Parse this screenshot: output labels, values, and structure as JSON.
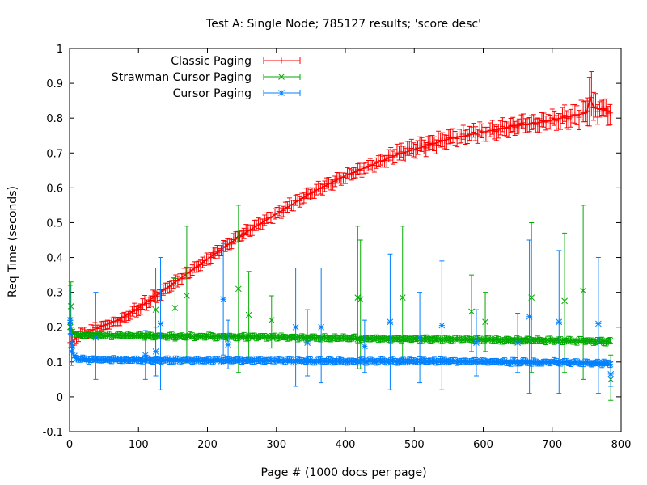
{
  "chart_data": {
    "type": "line",
    "title": "Test A: Single Node; 785127 results; 'score desc'",
    "xlabel": "Page # (1000 docs per page)",
    "ylabel": "Req Time (seconds)",
    "xlim": [
      0,
      800
    ],
    "ylim": [
      -0.1,
      1
    ],
    "x_ticks": [
      "0",
      "100",
      "200",
      "300",
      "400",
      "500",
      "600",
      "700",
      "800"
    ],
    "y_ticks": [
      "-0.1",
      "0",
      "0.1",
      "0.2",
      "0.3",
      "0.4",
      "0.5",
      "0.6",
      "0.7",
      "0.8",
      "0.9",
      "1"
    ],
    "x_tick_values": [
      0,
      100,
      200,
      300,
      400,
      500,
      600,
      700,
      800
    ],
    "y_tick_values": [
      -0.1,
      0,
      0.1,
      0.2,
      0.3,
      0.4,
      0.5,
      0.6,
      0.7,
      0.8,
      0.9,
      1
    ],
    "grid": false,
    "legend_position": "top-left",
    "series": [
      {
        "name": "Classic Paging",
        "color": "#ff0000",
        "marker": "plus",
        "x": [
          1,
          10,
          25,
          50,
          75,
          100,
          125,
          150,
          175,
          200,
          225,
          250,
          275,
          300,
          325,
          350,
          375,
          400,
          425,
          450,
          475,
          500,
          525,
          550,
          575,
          600,
          625,
          650,
          675,
          700,
          725,
          750,
          755,
          760,
          770,
          785
        ],
        "y": [
          0.15,
          0.17,
          0.185,
          0.205,
          0.225,
          0.255,
          0.29,
          0.325,
          0.36,
          0.395,
          0.43,
          0.465,
          0.495,
          0.525,
          0.555,
          0.585,
          0.61,
          0.635,
          0.655,
          0.675,
          0.695,
          0.71,
          0.725,
          0.74,
          0.75,
          0.76,
          0.77,
          0.78,
          0.785,
          0.795,
          0.805,
          0.815,
          0.86,
          0.83,
          0.825,
          0.82
        ],
        "y_err": [
          0.02,
          0.015,
          0.012,
          0.012,
          0.012,
          0.015,
          0.015,
          0.015,
          0.015,
          0.015,
          0.015,
          0.015,
          0.015,
          0.015,
          0.015,
          0.015,
          0.015,
          0.015,
          0.015,
          0.015,
          0.02,
          0.02,
          0.02,
          0.02,
          0.02,
          0.02,
          0.02,
          0.02,
          0.02,
          0.02,
          0.025,
          0.03,
          0.08,
          0.04,
          0.02,
          0.03
        ]
      },
      {
        "name": "Strawman Cursor Paging",
        "color": "#00aa00",
        "marker": "cross",
        "x": [
          1,
          5,
          10,
          25,
          50,
          100,
          150,
          200,
          250,
          300,
          350,
          400,
          450,
          500,
          550,
          600,
          650,
          700,
          750,
          785
        ],
        "y": [
          0.2,
          0.185,
          0.178,
          0.177,
          0.176,
          0.175,
          0.174,
          0.173,
          0.172,
          0.171,
          0.17,
          0.168,
          0.167,
          0.166,
          0.165,
          0.164,
          0.163,
          0.162,
          0.16,
          0.158
        ],
        "outliers": [
          {
            "x": 2,
            "y": 0.26,
            "lo": 0.19,
            "hi": 0.33
          },
          {
            "x": 125,
            "y": 0.25,
            "lo": 0.13,
            "hi": 0.37
          },
          {
            "x": 153,
            "y": 0.255,
            "lo": 0.16,
            "hi": 0.34
          },
          {
            "x": 170,
            "y": 0.29,
            "lo": 0.1,
            "hi": 0.49
          },
          {
            "x": 245,
            "y": 0.31,
            "lo": 0.07,
            "hi": 0.55
          },
          {
            "x": 260,
            "y": 0.235,
            "lo": 0.1,
            "hi": 0.36
          },
          {
            "x": 293,
            "y": 0.22,
            "lo": 0.14,
            "hi": 0.29
          },
          {
            "x": 418,
            "y": 0.285,
            "lo": 0.08,
            "hi": 0.49
          },
          {
            "x": 422,
            "y": 0.28,
            "lo": 0.08,
            "hi": 0.45
          },
          {
            "x": 483,
            "y": 0.285,
            "lo": 0.1,
            "hi": 0.49
          },
          {
            "x": 583,
            "y": 0.245,
            "lo": 0.13,
            "hi": 0.35
          },
          {
            "x": 603,
            "y": 0.215,
            "lo": 0.13,
            "hi": 0.3
          },
          {
            "x": 670,
            "y": 0.285,
            "lo": 0.07,
            "hi": 0.5
          },
          {
            "x": 718,
            "y": 0.275,
            "lo": 0.07,
            "hi": 0.47
          },
          {
            "x": 745,
            "y": 0.305,
            "lo": 0.05,
            "hi": 0.55
          },
          {
            "x": 785,
            "y": 0.05,
            "lo": -0.01,
            "hi": 0.12
          }
        ]
      },
      {
        "name": "Cursor Paging",
        "color": "#0080ff",
        "marker": "star",
        "x": [
          1,
          5,
          10,
          25,
          50,
          100,
          150,
          200,
          250,
          300,
          350,
          400,
          450,
          500,
          550,
          600,
          650,
          700,
          750,
          785
        ],
        "y": [
          0.22,
          0.12,
          0.108,
          0.107,
          0.106,
          0.106,
          0.105,
          0.105,
          0.104,
          0.104,
          0.103,
          0.103,
          0.103,
          0.102,
          0.102,
          0.101,
          0.1,
          0.1,
          0.098,
          0.095
        ],
        "outliers": [
          {
            "x": 1,
            "y": 0.22,
            "lo": 0.18,
            "hi": 0.32
          },
          {
            "x": 3,
            "y": 0.13,
            "lo": 0.09,
            "hi": 0.18
          },
          {
            "x": 38,
            "y": 0.17,
            "lo": 0.05,
            "hi": 0.3
          },
          {
            "x": 110,
            "y": 0.12,
            "lo": 0.05,
            "hi": 0.19
          },
          {
            "x": 125,
            "y": 0.13,
            "lo": 0.06,
            "hi": 0.2
          },
          {
            "x": 132,
            "y": 0.21,
            "lo": 0.02,
            "hi": 0.4
          },
          {
            "x": 223,
            "y": 0.28,
            "lo": 0.12,
            "hi": 0.44
          },
          {
            "x": 230,
            "y": 0.15,
            "lo": 0.08,
            "hi": 0.22
          },
          {
            "x": 328,
            "y": 0.2,
            "lo": 0.03,
            "hi": 0.37
          },
          {
            "x": 345,
            "y": 0.155,
            "lo": 0.06,
            "hi": 0.25
          },
          {
            "x": 365,
            "y": 0.2,
            "lo": 0.04,
            "hi": 0.37
          },
          {
            "x": 428,
            "y": 0.145,
            "lo": 0.07,
            "hi": 0.22
          },
          {
            "x": 465,
            "y": 0.215,
            "lo": 0.02,
            "hi": 0.41
          },
          {
            "x": 508,
            "y": 0.17,
            "lo": 0.04,
            "hi": 0.3
          },
          {
            "x": 540,
            "y": 0.205,
            "lo": 0.02,
            "hi": 0.39
          },
          {
            "x": 590,
            "y": 0.155,
            "lo": 0.06,
            "hi": 0.25
          },
          {
            "x": 650,
            "y": 0.155,
            "lo": 0.07,
            "hi": 0.24
          },
          {
            "x": 667,
            "y": 0.23,
            "lo": 0.01,
            "hi": 0.45
          },
          {
            "x": 710,
            "y": 0.215,
            "lo": 0.01,
            "hi": 0.42
          },
          {
            "x": 767,
            "y": 0.21,
            "lo": 0.01,
            "hi": 0.4
          },
          {
            "x": 785,
            "y": 0.065,
            "lo": 0.03,
            "hi": 0.1
          }
        ]
      }
    ]
  }
}
